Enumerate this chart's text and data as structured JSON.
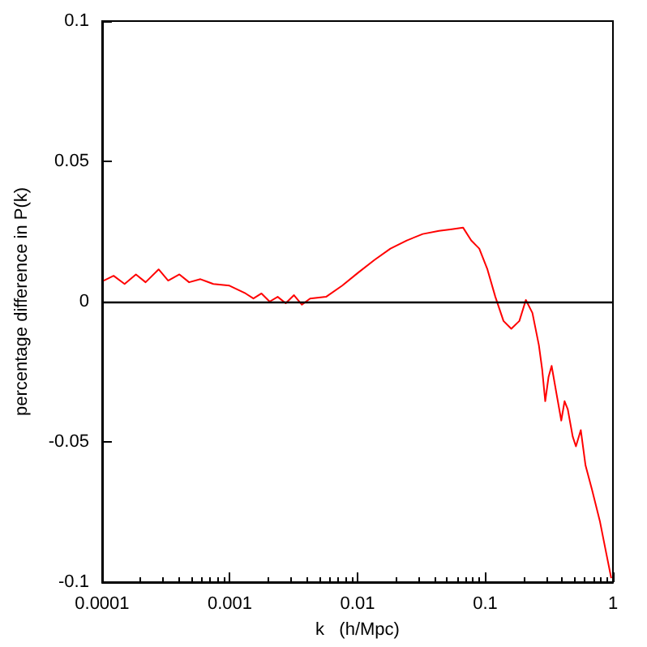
{
  "chart_data": {
    "type": "line",
    "xlabel": "k   (h/Mpc)",
    "ylabel": "percentage difference in P(k)",
    "log": "x",
    "grid": false,
    "marker": "none",
    "xlim": [
      0.0001,
      1
    ],
    "xticks": [
      0.0001,
      0.001,
      0.01,
      0.1,
      1
    ],
    "ylim": [
      -0.1,
      0.1
    ],
    "yticks": [
      -0.1,
      -0.05,
      0,
      0.05,
      0.1
    ],
    "ref_lines": [
      {
        "axis": "y",
        "value": 0,
        "color": "#000000"
      }
    ],
    "series": [
      {
        "color": "#ff0000",
        "x": [
          0.000103,
          0.000123,
          0.00015,
          0.000184,
          0.000219,
          0.000277,
          0.000329,
          0.000403,
          0.00048,
          0.000589,
          0.000743,
          0.000993,
          0.00133,
          0.00153,
          0.00177,
          0.00205,
          0.00237,
          0.00274,
          0.00318,
          0.00367,
          0.00425,
          0.00567,
          0.00759,
          0.0101,
          0.0136,
          0.0181,
          0.0243,
          0.0324,
          0.0434,
          0.0547,
          0.067,
          0.0776,
          0.0898,
          0.104,
          0.12,
          0.139,
          0.16,
          0.185,
          0.208,
          0.234,
          0.263,
          0.279,
          0.295,
          0.313,
          0.331,
          0.361,
          0.394,
          0.418,
          0.443,
          0.484,
          0.513,
          0.56,
          0.61,
          0.685,
          0.792,
          0.889,
          0.97
        ],
        "values": [
          0.0075,
          0.0092,
          0.0063,
          0.0097,
          0.0069,
          0.0115,
          0.0075,
          0.0097,
          0.0069,
          0.008,
          0.0063,
          0.0057,
          0.0029,
          0.0011,
          0.0029,
          0,
          0.0017,
          -0.0006,
          0.0023,
          -0.0011,
          0.0011,
          0.0017,
          0.0057,
          0.0103,
          0.0149,
          0.0189,
          0.0218,
          0.0241,
          0.0252,
          0.0258,
          0.0264,
          0.0218,
          0.0189,
          0.0115,
          0.0017,
          -0.0069,
          -0.0097,
          -0.0069,
          0.0006,
          -0.004,
          -0.0155,
          -0.0241,
          -0.0355,
          -0.0269,
          -0.0229,
          -0.0327,
          -0.0424,
          -0.0355,
          -0.0384,
          -0.0481,
          -0.0516,
          -0.0458,
          -0.0584,
          -0.067,
          -0.0785,
          -0.09,
          -0.0986
        ]
      }
    ]
  }
}
